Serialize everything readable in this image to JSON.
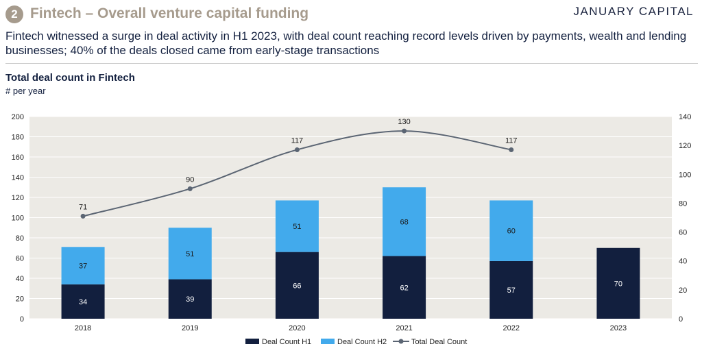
{
  "header": {
    "section_number": "2",
    "section_title": "Fintech – Overall venture capital funding",
    "brand": "JANUARY CAPITAL"
  },
  "subtitle": "Fintech witnessed a surge in deal activity in H1 2023, with deal count reaching record levels driven by payments, wealth and lending businesses; 40% of the deals closed came from early-stage transactions",
  "chart_title": "Total deal count in Fintech",
  "chart_subtitle": "# per year",
  "colors": {
    "h1": "#121f3e",
    "h2": "#42aaec",
    "line": "#5b6573",
    "plot_bg": "#eceae5",
    "grid": "#ffffff",
    "badge": "#a69b8d"
  },
  "chart_data": {
    "type": "bar",
    "stacked": true,
    "categories": [
      "2018",
      "2019",
      "2020",
      "2021",
      "2022",
      "2023"
    ],
    "series": [
      {
        "name": "Deal Count H1",
        "values": [
          34,
          39,
          66,
          62,
          57,
          70
        ],
        "axis": "left"
      },
      {
        "name": "Deal Count H2",
        "values": [
          37,
          51,
          51,
          68,
          60,
          null
        ],
        "axis": "left"
      },
      {
        "name": "Total Deal Count",
        "type": "line",
        "values": [
          71,
          90,
          117,
          130,
          117,
          null
        ],
        "axis": "right"
      }
    ],
    "ylim": [
      0,
      200
    ],
    "yticks": [
      0,
      20,
      40,
      60,
      80,
      100,
      120,
      140,
      160,
      180,
      200
    ],
    "y2lim": [
      0,
      140
    ],
    "y2ticks": [
      0,
      20,
      40,
      60,
      80,
      100,
      120,
      140
    ],
    "legend_position": "bottom",
    "grid": true
  }
}
